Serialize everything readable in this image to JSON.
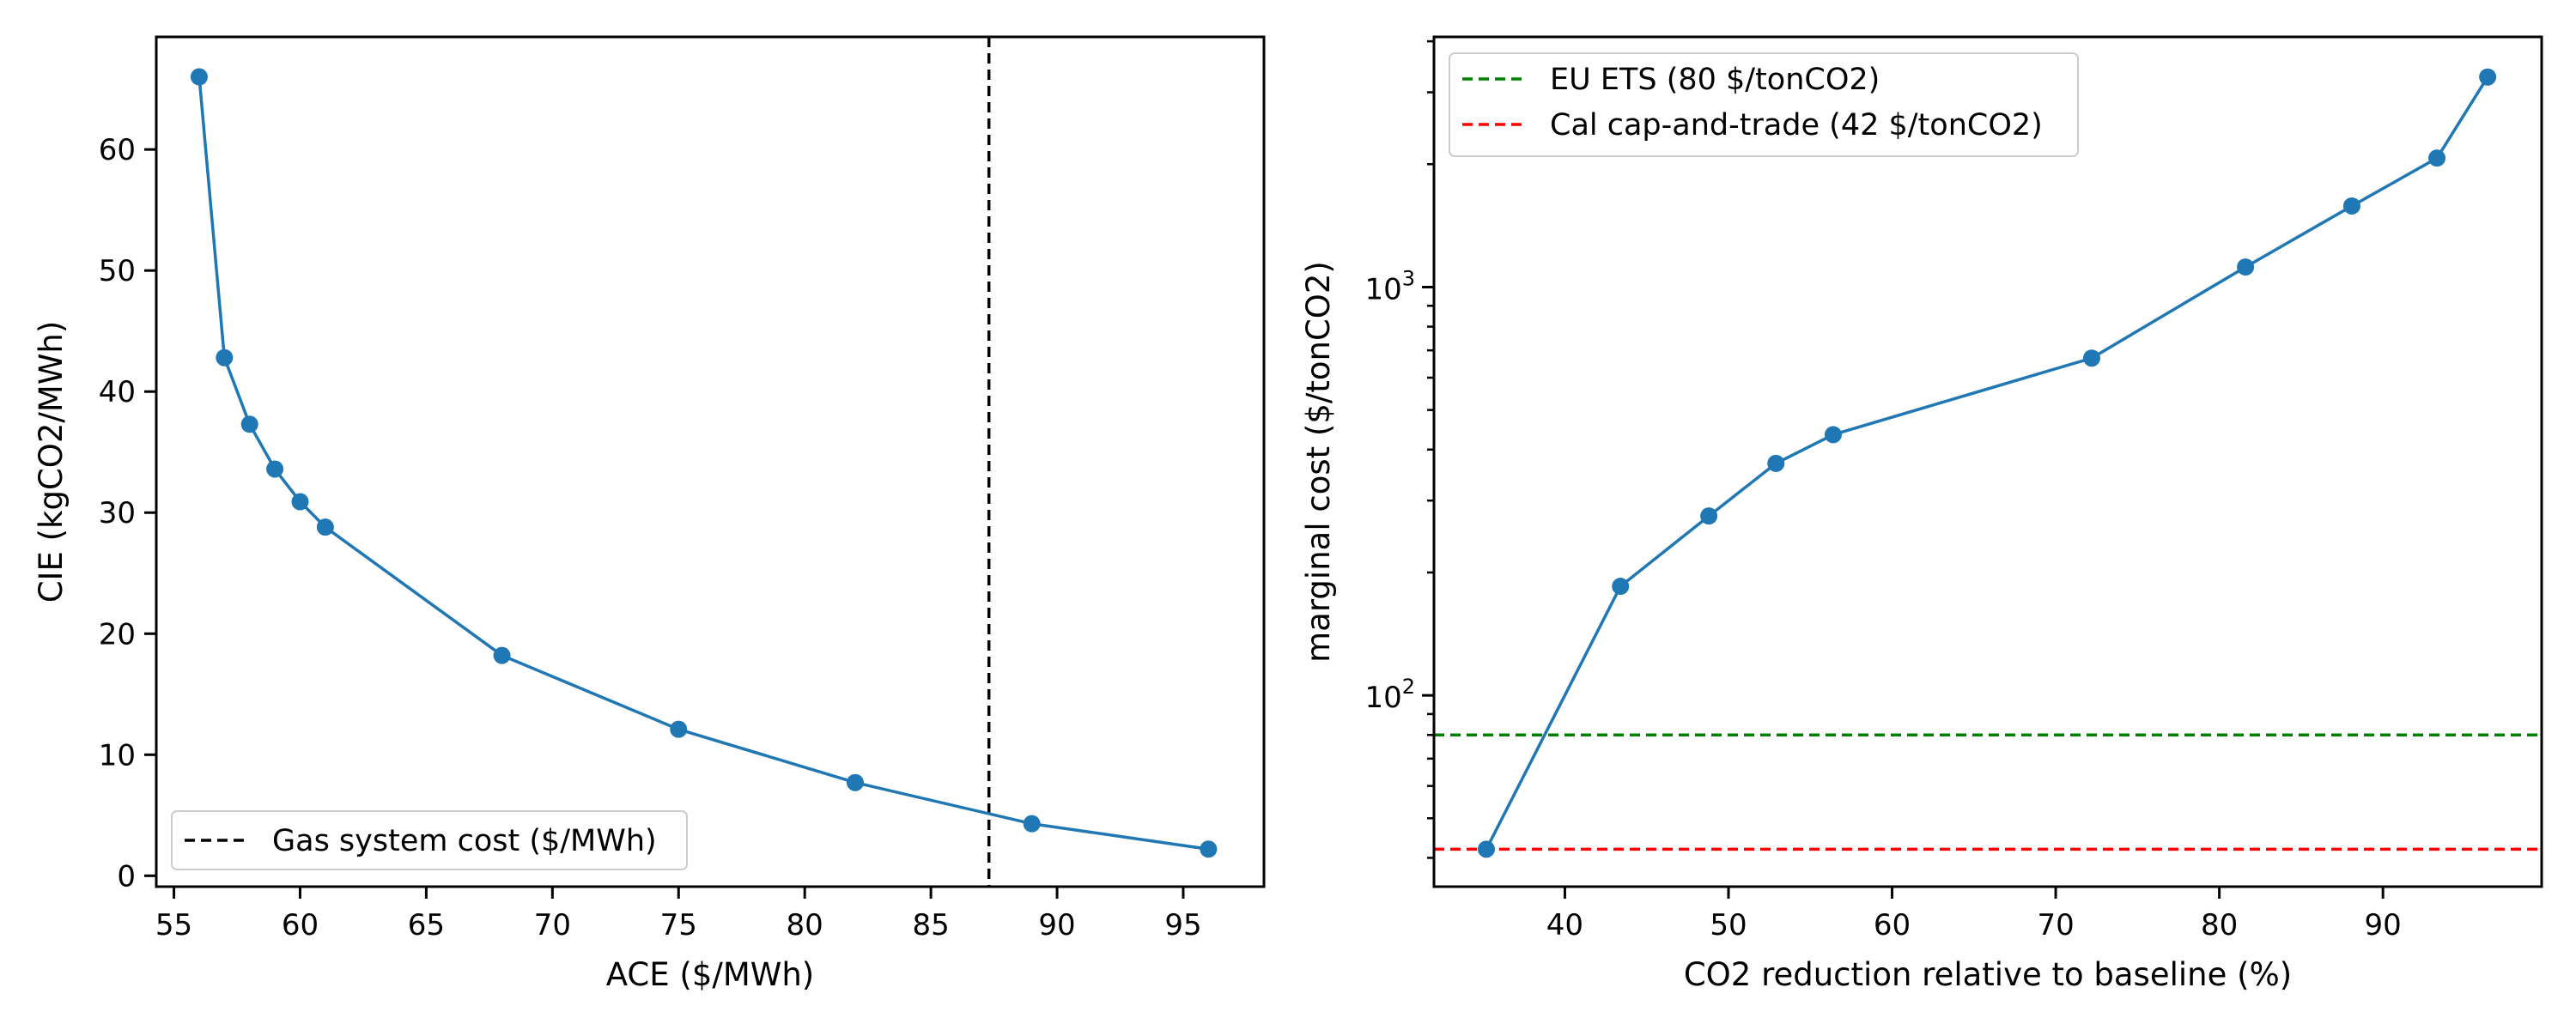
{
  "chart_data": [
    {
      "type": "line",
      "xlabel": "ACE ($/MWh)",
      "ylabel": "CIE (kgCO2/MWh)",
      "xlim": [
        54.3,
        98.2
      ],
      "ylim": [
        -0.9,
        69.3
      ],
      "xticks": [
        55,
        60,
        65,
        70,
        75,
        80,
        85,
        90,
        95
      ],
      "yticks": [
        0,
        10,
        20,
        30,
        40,
        50,
        60
      ],
      "grid": false,
      "legend_position": "lower-left",
      "color": "#1f77b4",
      "series": [
        {
          "x": [
            56,
            57,
            58,
            59,
            60,
            61,
            68,
            75,
            82,
            89,
            96
          ],
          "y": [
            66.0,
            42.8,
            37.3,
            33.6,
            30.9,
            28.8,
            18.2,
            12.1,
            7.7,
            4.3,
            2.2
          ]
        }
      ],
      "reference_lines": [
        {
          "orientation": "vertical",
          "value": 87.3,
          "name": "Gas system cost ($/MWh)",
          "color": "#000000",
          "style": "dashed"
        }
      ]
    },
    {
      "type": "line",
      "xlabel": "CO2 reduction relative to baseline (%)",
      "ylabel": "marginal cost ($/tonCO2)",
      "yscale": "log",
      "xlim": [
        32,
        99.7
      ],
      "ylim": [
        34,
        4100
      ],
      "xticks": [
        40,
        50,
        60,
        70,
        80,
        90
      ],
      "yticks_major": [
        {
          "value": 100,
          "base": "10",
          "exp": "2"
        },
        {
          "value": 1000,
          "base": "10",
          "exp": "3"
        }
      ],
      "yticks_minor": [
        40,
        50,
        60,
        70,
        80,
        90,
        200,
        300,
        400,
        500,
        600,
        700,
        800,
        900,
        2000,
        3000,
        4000
      ],
      "grid": false,
      "legend_position": "upper-left",
      "color": "#1f77b4",
      "series": [
        {
          "x": [
            35.2,
            43.4,
            48.8,
            52.9,
            56.4,
            72.2,
            81.6,
            88.1,
            93.3,
            96.4
          ],
          "y": [
            42,
            185,
            275,
            370,
            435,
            670,
            1120,
            1580,
            2070,
            3270
          ]
        }
      ],
      "reference_lines": [
        {
          "orientation": "horizontal",
          "value": 80,
          "name": "EU ETS (80 $/tonCO2)",
          "color": "#008000",
          "style": "dashed"
        },
        {
          "orientation": "horizontal",
          "value": 42,
          "name": "Cal cap-and-trade (42 $/tonCO2)",
          "color": "#ff0000",
          "style": "dashed"
        }
      ]
    }
  ]
}
